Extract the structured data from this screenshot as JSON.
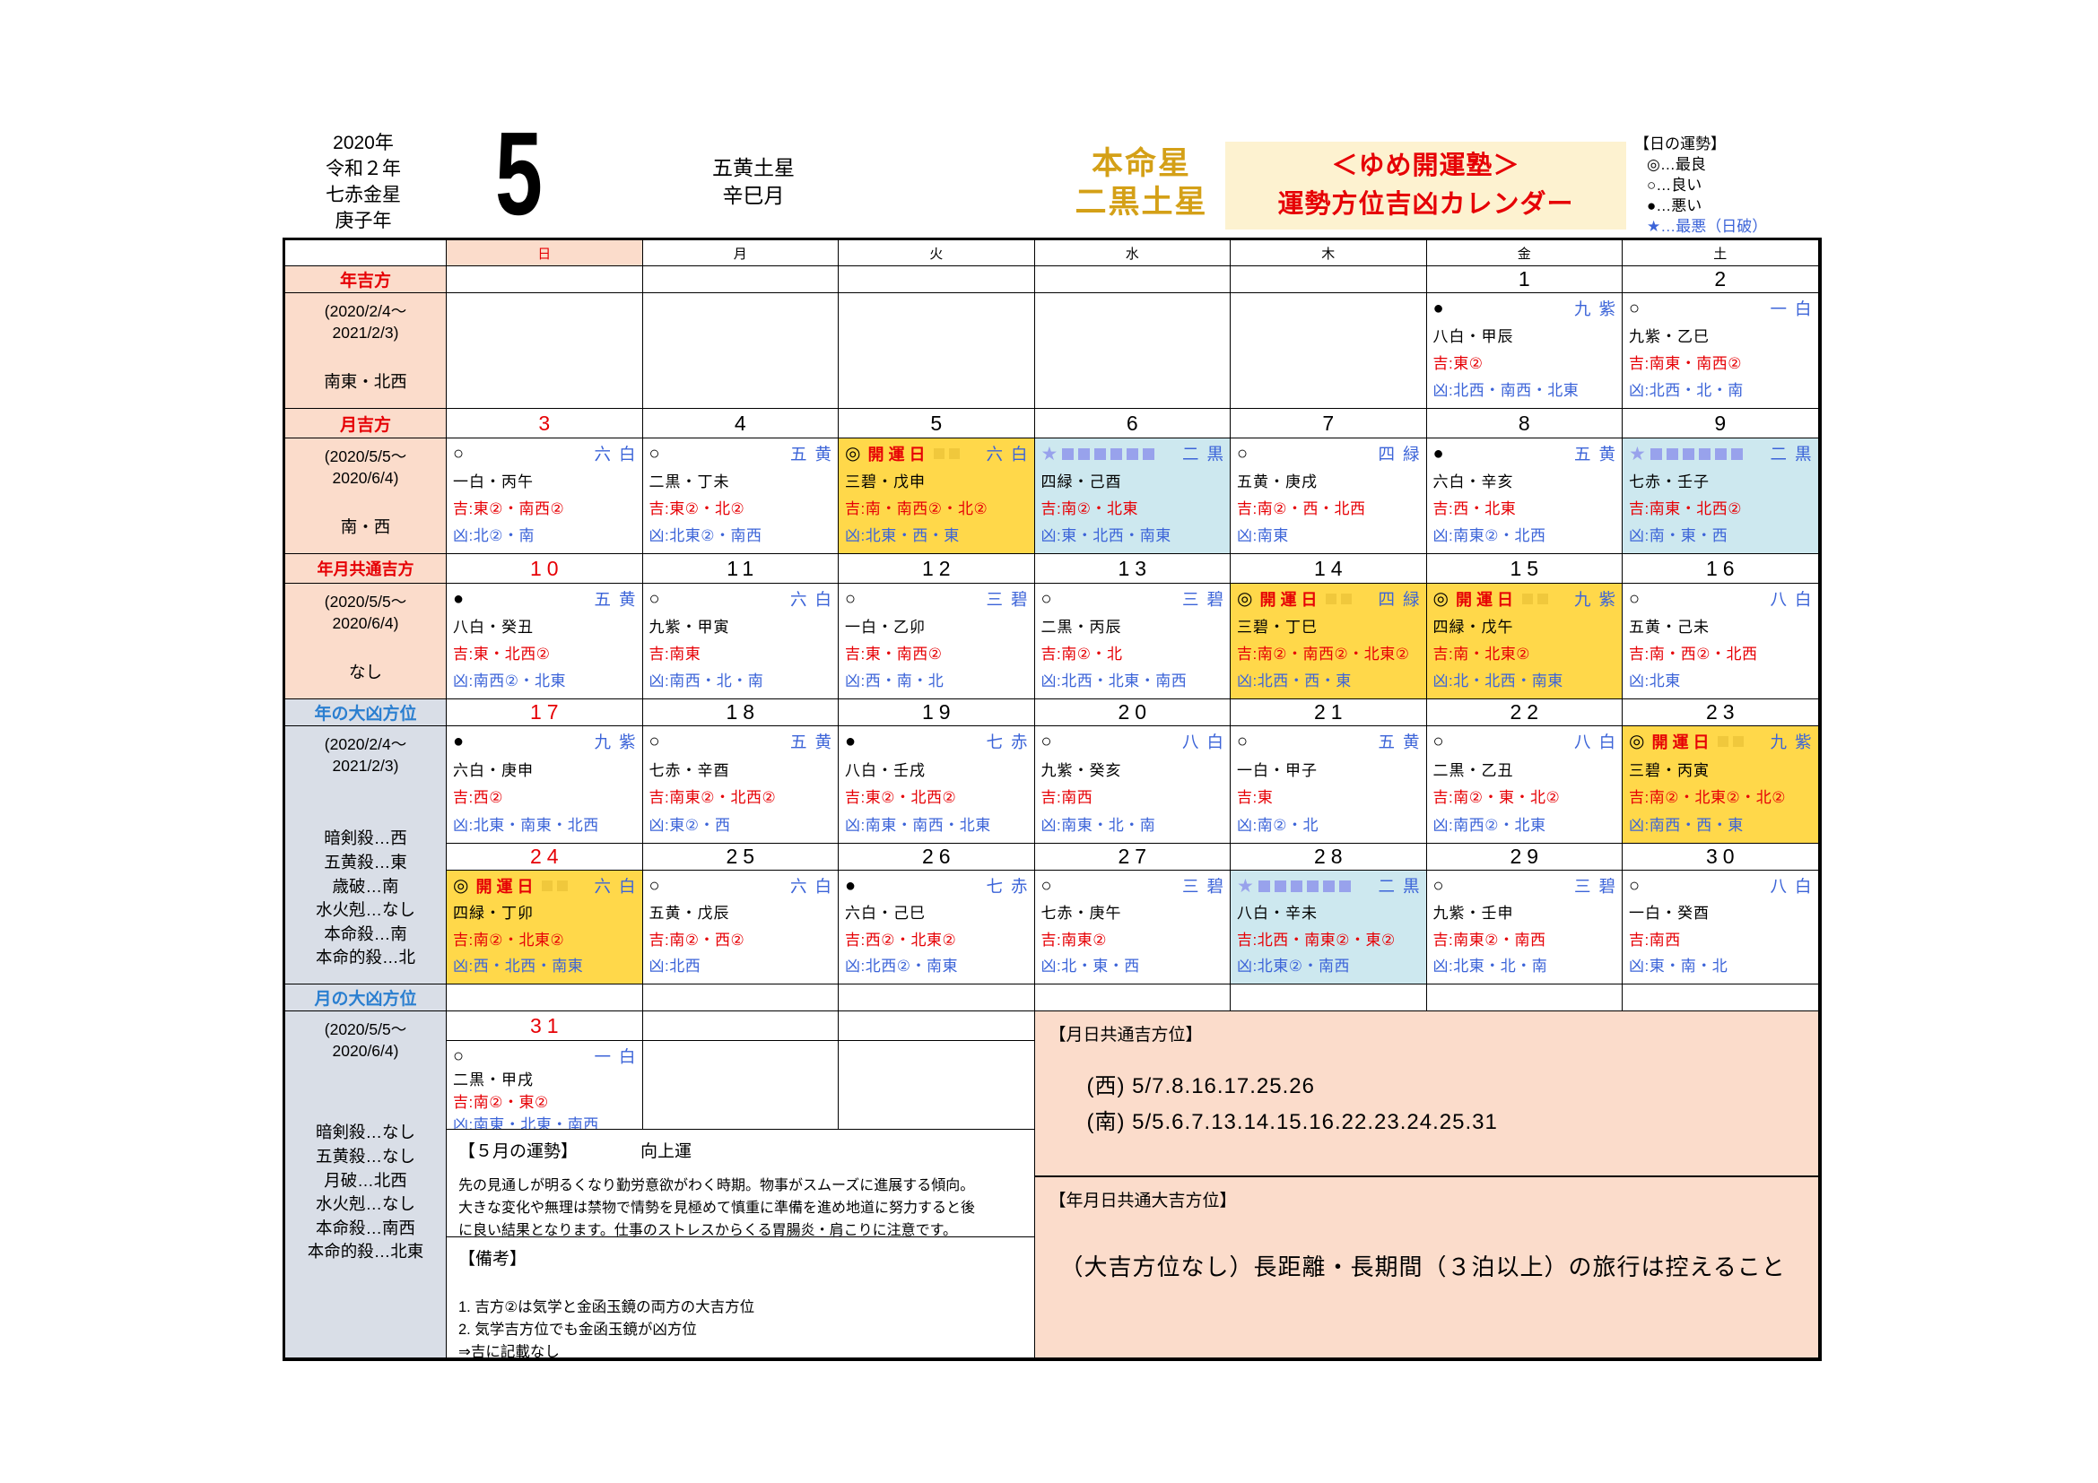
{
  "header": {
    "year_lines": "2020年\n令和２年\n七赤金星\n庚子年",
    "month_number": "5",
    "month_star": "五黄土星\n辛巳月",
    "honmei": "本命星\n二黒土星",
    "title": "＜ゆめ開運塾＞\n運勢方位吉凶カレンダー",
    "legend_title": "【日の運勢】",
    "legend_items": [
      "◎…最良",
      "○…良い",
      "●…悪い",
      "★…最悪（日破）"
    ]
  },
  "weekdays": [
    "日",
    "月",
    "火",
    "水",
    "木",
    "金",
    "土"
  ],
  "sidebar": {
    "sections": [
      {
        "label": "年吉方",
        "period": "(2020/2/4～\n2021/2/3)",
        "value": "南東・北西"
      },
      {
        "label": "月吉方",
        "period": "(2020/5/5～\n2020/6/4)",
        "value": "南・西"
      },
      {
        "label": "年月共通吉方",
        "period": "(2020/5/5～\n2020/6/4)",
        "value": "なし"
      },
      {
        "label": "年の大凶方位",
        "period": "(2020/2/4～\n2021/2/3)",
        "value": "暗剣殺…西\n五黄殺…東\n歳破…南\n水火剋…なし\n本命殺…南\n本命的殺…北"
      },
      {
        "label": "月の大凶方位",
        "period": "(2020/5/5～\n2020/6/4)",
        "value": "暗剣殺…なし\n五黄殺…なし\n月破…北西\n水火剋…なし\n本命殺…南西\n本命的殺…北東"
      }
    ]
  },
  "calendar": {
    "kaiun_label": "開運日",
    "weeks": [
      [
        null,
        null,
        null,
        null,
        null,
        {
          "date": "1",
          "type": "normal",
          "sym": "●",
          "star": "九紫",
          "line": "八白・甲辰",
          "kichi": "吉:東②",
          "kyo": "凶:北西・南西・北東"
        },
        {
          "date": "2",
          "type": "normal",
          "sym": "○",
          "star": "一白",
          "line": "九紫・乙巳",
          "kichi": "吉:南東・南西②",
          "kyo": "凶:北西・北・南"
        }
      ],
      [
        {
          "date": "3",
          "type": "normal",
          "sym": "○",
          "star": "六白",
          "line": "一白・丙午",
          "kichi": "吉:東②・南西②",
          "kyo": "凶:北②・南"
        },
        {
          "date": "4",
          "type": "normal",
          "sym": "○",
          "star": "五黄",
          "line": "二黒・丁未",
          "kichi": "吉:東②・北②",
          "kyo": "凶:北東②・南西"
        },
        {
          "date": "5",
          "type": "kaiun",
          "sym": "◎",
          "star": "六白",
          "line": "三碧・戊申",
          "kichi": "吉:南・南西②・北②",
          "kyo": "凶:北東・西・東"
        },
        {
          "date": "6",
          "type": "worst",
          "sym": "★",
          "star": "二黒",
          "line": "四緑・己酉",
          "kichi": "吉:南②・北東",
          "kyo": "凶:東・北西・南東"
        },
        {
          "date": "7",
          "type": "normal",
          "sym": "○",
          "star": "四緑",
          "line": "五黄・庚戌",
          "kichi": "吉:南②・西・北西",
          "kyo": "凶:南東"
        },
        {
          "date": "8",
          "type": "normal",
          "sym": "●",
          "star": "五黄",
          "line": "六白・辛亥",
          "kichi": "吉:西・北東",
          "kyo": "凶:南東②・北西"
        },
        {
          "date": "9",
          "type": "worst",
          "sym": "★",
          "star": "二黒",
          "line": "七赤・壬子",
          "kichi": "吉:南東・北西②",
          "kyo": "凶:南・東・西"
        }
      ],
      [
        {
          "date": "10",
          "type": "normal",
          "sym": "●",
          "star": "五黄",
          "line": "八白・癸丑",
          "kichi": "吉:東・北西②",
          "kyo": "凶:南西②・北東"
        },
        {
          "date": "11",
          "type": "normal",
          "sym": "○",
          "star": "六白",
          "line": "九紫・甲寅",
          "kichi": "吉:南東",
          "kyo": "凶:南西・北・南"
        },
        {
          "date": "12",
          "type": "normal",
          "sym": "○",
          "star": "三碧",
          "line": "一白・乙卯",
          "kichi": "吉:東・南西②",
          "kyo": "凶:西・南・北"
        },
        {
          "date": "13",
          "type": "normal",
          "sym": "○",
          "star": "三碧",
          "line": "二黒・丙辰",
          "kichi": "吉:南②・北",
          "kyo": "凶:北西・北東・南西"
        },
        {
          "date": "14",
          "type": "kaiun",
          "sym": "◎",
          "star": "四緑",
          "line": "三碧・丁巳",
          "kichi": "吉:南②・南西②・北東②",
          "kyo": "凶:北西・西・東"
        },
        {
          "date": "15",
          "type": "kaiun",
          "sym": "◎",
          "star": "九紫",
          "line": "四緑・戊午",
          "kichi": "吉:南・北東②",
          "kyo": "凶:北・北西・南東"
        },
        {
          "date": "16",
          "type": "normal",
          "sym": "○",
          "star": "八白",
          "line": "五黄・己未",
          "kichi": "吉:南・西②・北西",
          "kyo": "凶:北東"
        }
      ],
      [
        {
          "date": "17",
          "type": "normal",
          "sym": "●",
          "star": "九紫",
          "line": "六白・庚申",
          "kichi": "吉:西②",
          "kyo": "凶:北東・南東・北西"
        },
        {
          "date": "18",
          "type": "normal",
          "sym": "○",
          "star": "五黄",
          "line": "七赤・辛酉",
          "kichi": "吉:南東②・北西②",
          "kyo": "凶:東②・西"
        },
        {
          "date": "19",
          "type": "normal",
          "sym": "●",
          "star": "七赤",
          "line": "八白・壬戌",
          "kichi": "吉:東②・北西②",
          "kyo": "凶:南東・南西・北東"
        },
        {
          "date": "20",
          "type": "normal",
          "sym": "○",
          "star": "八白",
          "line": "九紫・癸亥",
          "kichi": "吉:南西",
          "kyo": "凶:南東・北・南"
        },
        {
          "date": "21",
          "type": "normal",
          "sym": "○",
          "star": "五黄",
          "line": "一白・甲子",
          "kichi": "吉:東",
          "kyo": "凶:南②・北"
        },
        {
          "date": "22",
          "type": "normal",
          "sym": "○",
          "star": "八白",
          "line": "二黒・乙丑",
          "kichi": "吉:南②・東・北②",
          "kyo": "凶:南西②・北東"
        },
        {
          "date": "23",
          "type": "kaiun",
          "sym": "◎",
          "star": "九紫",
          "line": "三碧・丙寅",
          "kichi": "吉:南②・北東②・北②",
          "kyo": "凶:南西・西・東"
        }
      ],
      [
        {
          "date": "24",
          "type": "kaiun",
          "sym": "◎",
          "star": "六白",
          "line": "四緑・丁卯",
          "kichi": "吉:南②・北東②",
          "kyo": "凶:西・北西・南東"
        },
        {
          "date": "25",
          "type": "normal",
          "sym": "○",
          "star": "六白",
          "line": "五黄・戊辰",
          "kichi": "吉:南②・西②",
          "kyo": "凶:北西"
        },
        {
          "date": "26",
          "type": "normal",
          "sym": "●",
          "star": "七赤",
          "line": "六白・己巳",
          "kichi": "吉:西②・北東②",
          "kyo": "凶:北西②・南東"
        },
        {
          "date": "27",
          "type": "normal",
          "sym": "○",
          "star": "三碧",
          "line": "七赤・庚午",
          "kichi": "吉:南東②",
          "kyo": "凶:北・東・西"
        },
        {
          "date": "28",
          "type": "worst",
          "sym": "★",
          "star": "二黒",
          "line": "八白・辛未",
          "kichi": "吉:北西・南東②・東②",
          "kyo": "凶:北東②・南西"
        },
        {
          "date": "29",
          "type": "normal",
          "sym": "○",
          "star": "三碧",
          "line": "九紫・壬申",
          "kichi": "吉:南東②・南西",
          "kyo": "凶:北東・北・南"
        },
        {
          "date": "30",
          "type": "normal",
          "sym": "○",
          "star": "八白",
          "line": "一白・癸酉",
          "kichi": "吉:南西",
          "kyo": "凶:東・南・北"
        }
      ],
      [
        {
          "date": "31",
          "type": "normal",
          "sym": "○",
          "star": "一白",
          "line": "二黒・甲戌",
          "kichi": "吉:南②・東②",
          "kyo": "凶:南東・北東・南西"
        },
        null,
        null
      ]
    ]
  },
  "bottom": {
    "tsukihi": {
      "title": "【月日共通吉方位】",
      "lines": "(西) 5/7.8.16.17.25.26\n(南) 5/5.6.7.13.14.15.16.22.23.24.25.31"
    },
    "nengetsu": {
      "title": "【年月日共通大吉方位】",
      "text": "（大吉方位なし）長距離・長期間（３泊以上）の旅行は控えること"
    },
    "unsei": {
      "title": "【５月の運勢】",
      "subtitle": "向上運",
      "text": "先の見通しが明るくなり勤労意欲がわく時期。物事がスムーズに進展する傾向。\n大きな変化や無理は禁物で情勢を見極めて慎重に準備を進め地道に努力すると後\nに良い結果となります。仕事のストレスからくる胃腸炎・肩こりに注意です。"
    },
    "biko": {
      "title": "【備考】",
      "lines": "1. 吉方②は気学と金函玉鏡の両方の大吉方位\n2. 気学吉方位でも金函玉鏡が凶方位\n⇒吉に記載なし"
    }
  }
}
